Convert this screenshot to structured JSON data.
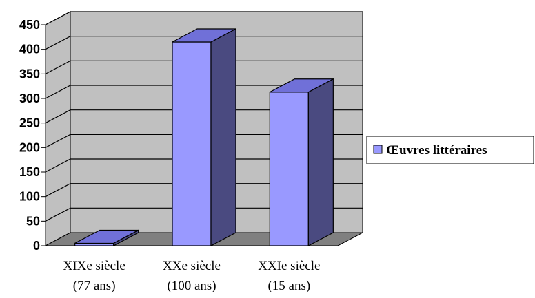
{
  "chart_data": {
    "type": "bar",
    "title": "",
    "xlabel": "",
    "ylabel": "",
    "categories": [
      [
        "XIXe siècle",
        "(77 ans)"
      ],
      [
        "XXe siècle",
        "(100 ans)"
      ],
      [
        "XXIe siècle",
        "(15 ans)"
      ]
    ],
    "series": [
      {
        "name": "Œuvres littéraires",
        "values": [
          5,
          415,
          313
        ]
      }
    ],
    "ylim": [
      0,
      450
    ],
    "yticks": [
      0,
      50,
      100,
      150,
      200,
      250,
      300,
      350,
      400,
      450
    ],
    "grid": true,
    "legend": "right",
    "style": "3d-column",
    "colors": {
      "bar_front": "#9999ff",
      "bar_top": "#7070d8",
      "bar_side": "#4a4a80",
      "wall": "#c0c0c0",
      "floor": "#808080",
      "gridline": "#000000"
    }
  }
}
